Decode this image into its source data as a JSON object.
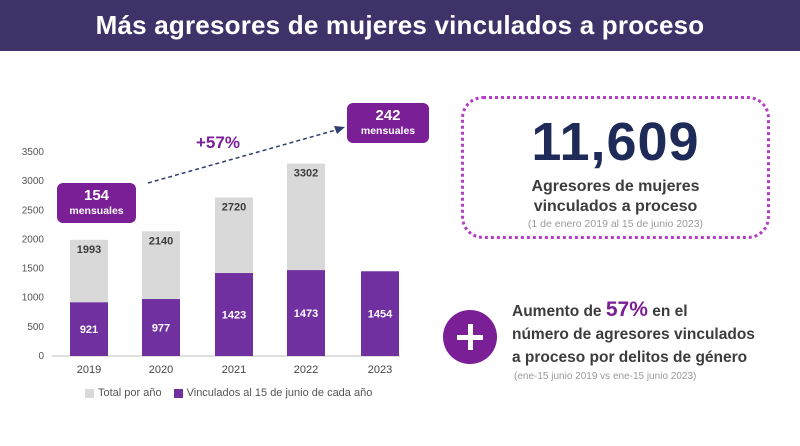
{
  "header": {
    "title": "Más agresores de mujeres vinculados a proceso"
  },
  "chart_data": {
    "type": "bar",
    "categories": [
      "2019",
      "2020",
      "2021",
      "2022",
      "2023"
    ],
    "series": [
      {
        "name": "Total por año",
        "values": [
          1993,
          2140,
          2720,
          3302,
          null
        ],
        "color": "#d9d9d9"
      },
      {
        "name": "Vinculados al 15 de junio de cada año",
        "values": [
          921,
          977,
          1423,
          1473,
          1454
        ],
        "color": "#7030a0"
      }
    ],
    "yticks": [
      0,
      500,
      1000,
      1500,
      2000,
      2500,
      3000,
      3500
    ],
    "ylim": [
      0,
      3500
    ],
    "overlap": true,
    "annotations": {
      "start": {
        "value": "154",
        "unit": "mensuales"
      },
      "end": {
        "value": "242",
        "unit": "mensuales"
      },
      "growth": "+57%"
    }
  },
  "colors": {
    "header_bg": "#3e3268",
    "accent_purple": "#7b1f96",
    "bar_purple": "#7030a0",
    "bar_gray": "#d9d9d9",
    "navy": "#1e2a57"
  },
  "total": {
    "value": "11,609",
    "caption_line1": "Agresores de mujeres",
    "caption_line2": "vinculados a proceso",
    "period": "(1 de enero 2019 al 15 de junio 2023)"
  },
  "increase": {
    "pre": "Aumento de ",
    "percent": "57%",
    "post": " en el",
    "line2": "número de agresores vinculados",
    "line3": "a proceso por delitos de género",
    "note": "(ene-15 junio 2019 vs ene-15 junio 2023)",
    "icon": "plus-icon"
  }
}
